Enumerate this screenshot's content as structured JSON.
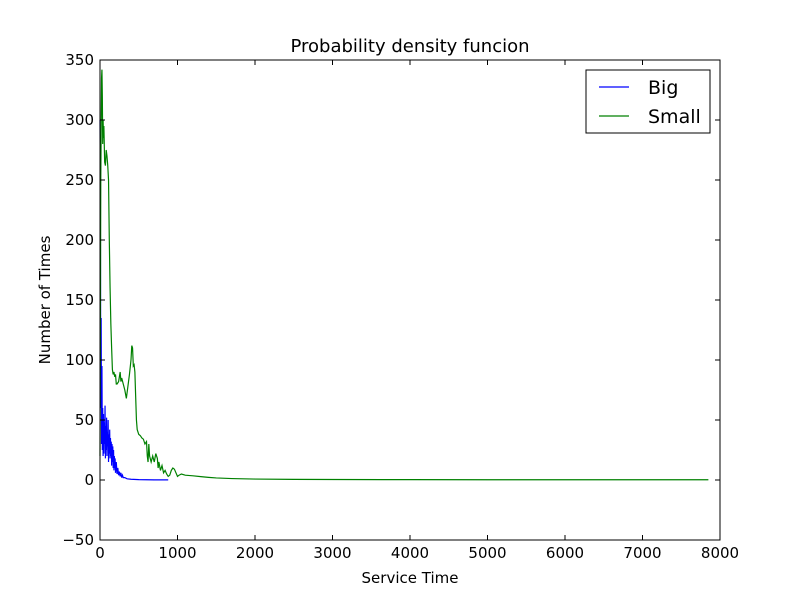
{
  "chart_data": {
    "type": "line",
    "title": "Probability density funcion",
    "xlabel": "Service Time",
    "ylabel": "Number of Times",
    "xlim": [
      0,
      8000
    ],
    "ylim": [
      -50,
      350
    ],
    "xticks": [
      0,
      1000,
      2000,
      3000,
      4000,
      5000,
      6000,
      7000,
      8000
    ],
    "yticks": [
      -50,
      0,
      50,
      100,
      150,
      200,
      250,
      300,
      350
    ],
    "grid": false,
    "legend_position": "top-right",
    "series": [
      {
        "name": "Big",
        "color": "#0000ff",
        "points": [
          [
            0,
            300
          ],
          [
            5,
            220
          ],
          [
            10,
            60
          ],
          [
            15,
            135
          ],
          [
            20,
            30
          ],
          [
            25,
            95
          ],
          [
            30,
            25
          ],
          [
            35,
            60
          ],
          [
            40,
            20
          ],
          [
            45,
            55
          ],
          [
            50,
            22
          ],
          [
            55,
            48
          ],
          [
            60,
            30
          ],
          [
            65,
            62
          ],
          [
            70,
            18
          ],
          [
            75,
            45
          ],
          [
            80,
            25
          ],
          [
            85,
            52
          ],
          [
            90,
            20
          ],
          [
            95,
            40
          ],
          [
            100,
            28
          ],
          [
            105,
            50
          ],
          [
            110,
            15
          ],
          [
            115,
            38
          ],
          [
            120,
            22
          ],
          [
            125,
            42
          ],
          [
            130,
            18
          ],
          [
            135,
            35
          ],
          [
            140,
            20
          ],
          [
            145,
            32
          ],
          [
            150,
            12
          ],
          [
            155,
            30
          ],
          [
            160,
            15
          ],
          [
            165,
            28
          ],
          [
            170,
            10
          ],
          [
            175,
            25
          ],
          [
            180,
            8
          ],
          [
            185,
            20
          ],
          [
            190,
            10
          ],
          [
            195,
            18
          ],
          [
            200,
            6
          ],
          [
            210,
            15
          ],
          [
            220,
            5
          ],
          [
            230,
            10
          ],
          [
            240,
            4
          ],
          [
            250,
            7
          ],
          [
            260,
            3
          ],
          [
            270,
            6
          ],
          [
            280,
            2
          ],
          [
            290,
            4
          ],
          [
            300,
            2
          ],
          [
            320,
            2
          ],
          [
            350,
            1
          ],
          [
            400,
            0.6
          ],
          [
            500,
            0.3
          ],
          [
            600,
            0.2
          ],
          [
            700,
            0.1
          ],
          [
            800,
            0.1
          ],
          [
            880,
            0.1
          ]
        ]
      },
      {
        "name": "Small",
        "color": "#008000",
        "points": [
          [
            0,
            20
          ],
          [
            10,
            250
          ],
          [
            20,
            335
          ],
          [
            25,
            342
          ],
          [
            30,
            320
          ],
          [
            35,
            280
          ],
          [
            40,
            300
          ],
          [
            45,
            285
          ],
          [
            50,
            295
          ],
          [
            60,
            265
          ],
          [
            70,
            262
          ],
          [
            80,
            275
          ],
          [
            90,
            270
          ],
          [
            100,
            262
          ],
          [
            110,
            250
          ],
          [
            120,
            200
          ],
          [
            130,
            160
          ],
          [
            140,
            130
          ],
          [
            150,
            110
          ],
          [
            160,
            92
          ],
          [
            170,
            88
          ],
          [
            180,
            90
          ],
          [
            190,
            86
          ],
          [
            200,
            88
          ],
          [
            210,
            80
          ],
          [
            220,
            80
          ],
          [
            240,
            82
          ],
          [
            260,
            90
          ],
          [
            270,
            82
          ],
          [
            280,
            85
          ],
          [
            300,
            80
          ],
          [
            320,
            75
          ],
          [
            340,
            68
          ],
          [
            360,
            78
          ],
          [
            380,
            88
          ],
          [
            400,
            100
          ],
          [
            410,
            112
          ],
          [
            420,
            110
          ],
          [
            430,
            95
          ],
          [
            440,
            96
          ],
          [
            450,
            90
          ],
          [
            460,
            70
          ],
          [
            470,
            50
          ],
          [
            480,
            42
          ],
          [
            500,
            38
          ],
          [
            520,
            37
          ],
          [
            540,
            35
          ],
          [
            560,
            34
          ],
          [
            580,
            30
          ],
          [
            600,
            32
          ],
          [
            610,
            20
          ],
          [
            620,
            15
          ],
          [
            630,
            30
          ],
          [
            640,
            20
          ],
          [
            660,
            15
          ],
          [
            680,
            20
          ],
          [
            700,
            15
          ],
          [
            720,
            22
          ],
          [
            740,
            18
          ],
          [
            750,
            10
          ],
          [
            760,
            15
          ],
          [
            780,
            8
          ],
          [
            800,
            12
          ],
          [
            820,
            6
          ],
          [
            840,
            8
          ],
          [
            860,
            5
          ],
          [
            880,
            3
          ],
          [
            900,
            4
          ],
          [
            920,
            8
          ],
          [
            940,
            10
          ],
          [
            960,
            9
          ],
          [
            980,
            6
          ],
          [
            1000,
            3
          ],
          [
            1020,
            4
          ],
          [
            1050,
            5
          ],
          [
            1100,
            4
          ],
          [
            1200,
            3.5
          ],
          [
            1300,
            2.8
          ],
          [
            1400,
            2.2
          ],
          [
            1500,
            1.7
          ],
          [
            1700,
            1.2
          ],
          [
            2000,
            0.8
          ],
          [
            2500,
            0.5
          ],
          [
            3000,
            0.4
          ],
          [
            4000,
            0.3
          ],
          [
            5000,
            0.2
          ],
          [
            6000,
            0.2
          ],
          [
            7000,
            0.2
          ],
          [
            7850,
            0.2
          ]
        ]
      }
    ]
  }
}
